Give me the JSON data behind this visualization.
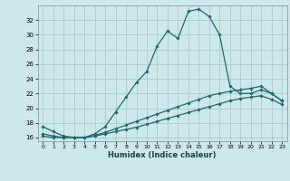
{
  "xlabel": "Humidex (Indice chaleur)",
  "background_color": "#cce8ea",
  "grid_color": "#aacccc",
  "line_color": "#1a6b6b",
  "x": [
    0,
    1,
    2,
    3,
    4,
    5,
    6,
    7,
    8,
    9,
    10,
    11,
    12,
    13,
    14,
    15,
    16,
    17,
    18,
    19,
    20,
    21,
    22,
    23
  ],
  "ylim": [
    15.5,
    34.0
  ],
  "xlim": [
    -0.5,
    23.5
  ],
  "yticks": [
    16,
    18,
    20,
    22,
    24,
    26,
    28,
    30,
    32
  ],
  "line1": [
    17.5,
    16.8,
    16.2,
    16.0,
    16.0,
    16.5,
    17.5,
    19.5,
    21.5,
    23.5,
    25.0,
    28.5,
    30.5,
    29.5,
    33.2,
    33.5,
    32.5,
    30.0,
    23.0,
    22.0,
    22.0,
    22.5,
    22.0,
    21.0
  ],
  "line2": [
    16.5,
    16.2,
    16.0,
    16.0,
    16.0,
    16.3,
    16.7,
    17.2,
    17.7,
    18.2,
    18.7,
    19.2,
    19.7,
    20.2,
    20.7,
    21.2,
    21.7,
    22.0,
    22.3,
    22.5,
    22.7,
    23.0,
    22.0,
    21.0
  ],
  "line3": [
    16.2,
    16.0,
    16.0,
    16.0,
    16.0,
    16.2,
    16.5,
    16.8,
    17.1,
    17.4,
    17.8,
    18.2,
    18.6,
    19.0,
    19.4,
    19.8,
    20.2,
    20.6,
    21.0,
    21.3,
    21.5,
    21.7,
    21.2,
    20.5
  ]
}
